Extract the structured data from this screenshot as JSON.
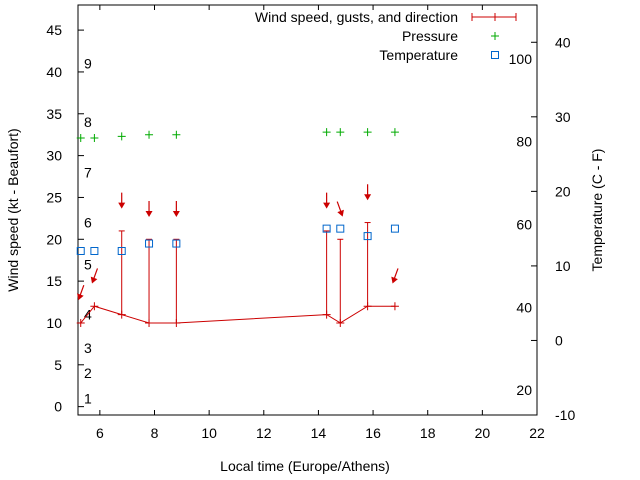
{
  "chart_data": {
    "type": "line",
    "xlabel": "Local time (Europe/Athens)",
    "ylabel_left": "Wind speed (kt - Beaufort)",
    "ylabel_right": "Temperature (C - F)",
    "xlim": [
      5.2,
      22
    ],
    "ylim_left": [
      -1,
      48
    ],
    "y2lim_celsius": [
      -10,
      45
    ],
    "x_ticks": [
      "6",
      "8",
      "10",
      "12",
      "14",
      "16",
      "18",
      "20",
      "22"
    ],
    "x_tick_values": [
      6,
      8,
      10,
      12,
      14,
      16,
      18,
      20,
      22
    ],
    "y_ticks_left": [
      "0",
      "5",
      "10",
      "15",
      "20",
      "25",
      "30",
      "35",
      "40",
      "45"
    ],
    "y_tick_values_left": [
      0,
      5,
      10,
      15,
      20,
      25,
      30,
      35,
      40,
      45
    ],
    "beaufort_labels": [
      "1",
      "2",
      "3",
      "4",
      "5",
      "6",
      "7",
      "8",
      "9"
    ],
    "beaufort_label_values": [
      1,
      4,
      7,
      11,
      17,
      22,
      28,
      34,
      41
    ],
    "celsius_ticks": [
      "-10",
      "0",
      "10",
      "20",
      "30",
      "40"
    ],
    "celsius_tick_values": [
      -10,
      0,
      10,
      20,
      30,
      40
    ],
    "fahrenheit_labels": [
      "20",
      "40",
      "60",
      "80",
      "100"
    ],
    "fahrenheit_label_values": [
      20,
      40,
      60,
      80,
      100
    ],
    "legend_position": "top-right",
    "series": [
      {
        "name": "Wind speed, gusts, and direction",
        "color": "#cc0000",
        "x": [
          5.3,
          5.8,
          6.8,
          7.8,
          8.8,
          14.3,
          14.8,
          15.8,
          16.8
        ],
        "speed": [
          10,
          12,
          11,
          10,
          10,
          11,
          10,
          12,
          12
        ],
        "gust": [
          10,
          12,
          21,
          20,
          20,
          21,
          20,
          22,
          12
        ],
        "direction_arrow_level": [
          13.5,
          15.5,
          24.5,
          23.5,
          23.5,
          24.5,
          23.5,
          25.5,
          15.5
        ],
        "direction_deg": [
          20,
          20,
          0,
          0,
          0,
          0,
          340,
          0,
          20
        ]
      },
      {
        "name": "Pressure",
        "color": "#00aa00",
        "x": [
          5.3,
          5.8,
          6.8,
          7.8,
          8.8,
          14.3,
          14.8,
          15.8,
          16.8
        ],
        "values": [
          32.1,
          32.1,
          32.3,
          32.5,
          32.5,
          32.8,
          32.8,
          32.8,
          32.8
        ]
      },
      {
        "name": "Temperature",
        "color": "#0066cc",
        "x": [
          5.3,
          5.8,
          6.8,
          7.8,
          8.8,
          14.3,
          14.8,
          15.8,
          16.8
        ],
        "values_celsius": [
          12,
          12,
          12,
          13,
          13,
          15,
          15,
          14,
          15
        ]
      }
    ]
  }
}
